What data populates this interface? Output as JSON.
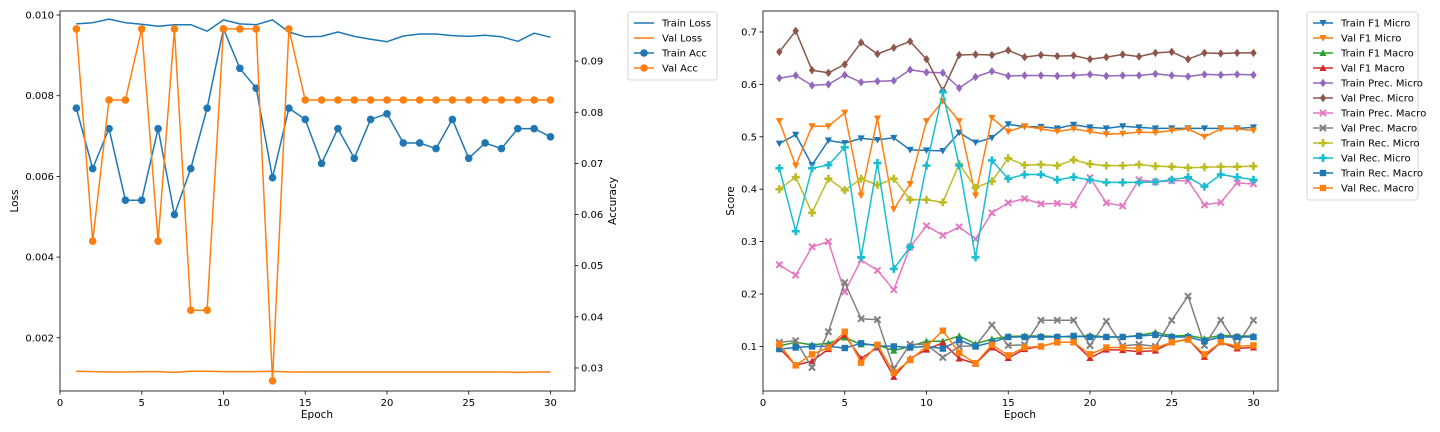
{
  "chart_data": [
    {
      "type": "line",
      "xlabel": "Epoch",
      "ylabel": "Loss",
      "y2label": "Accuracy",
      "x": [
        1,
        2,
        3,
        4,
        5,
        6,
        7,
        8,
        9,
        10,
        11,
        12,
        13,
        14,
        15,
        16,
        17,
        18,
        19,
        20,
        21,
        22,
        23,
        24,
        25,
        26,
        27,
        28,
        29,
        30
      ],
      "xlim": [
        0,
        31.5
      ],
      "xticks": [
        0,
        5,
        10,
        15,
        20,
        25,
        30
      ],
      "ylim": [
        0.00068,
        0.0101
      ],
      "yticks": [
        0.002,
        0.004,
        0.006,
        0.008,
        0.01
      ],
      "ytick_labels": [
        "0.002",
        "0.004",
        "0.006",
        "0.008",
        "0.010"
      ],
      "y2lim": [
        0.0255,
        0.0998
      ],
      "y2ticks": [
        0.03,
        0.04,
        0.05,
        0.06,
        0.07,
        0.08,
        0.09
      ],
      "y2tick_labels": [
        "0.03",
        "0.04",
        "0.05",
        "0.06",
        "0.07",
        "0.08",
        "0.09"
      ],
      "legend_position": "outside upper right",
      "series": [
        {
          "name": "Train Loss",
          "axis": "left",
          "color": "#1f77b4",
          "marker": "none",
          "values": [
            0.00978,
            0.00981,
            0.0099,
            0.00981,
            0.00977,
            0.00972,
            0.00976,
            0.00976,
            0.0096,
            0.00988,
            0.00978,
            0.00976,
            0.00988,
            0.00958,
            0.00946,
            0.00947,
            0.00958,
            0.00947,
            0.0094,
            0.00934,
            0.00948,
            0.00953,
            0.00953,
            0.00949,
            0.00947,
            0.0095,
            0.00946,
            0.00935,
            0.00955,
            0.00945
          ]
        },
        {
          "name": "Val Loss",
          "axis": "left",
          "color": "#ff7f0e",
          "marker": "none",
          "values": [
            0.00117,
            0.00116,
            0.00115,
            0.00115,
            0.00116,
            0.00116,
            0.00114,
            0.00117,
            0.00117,
            0.00116,
            0.00116,
            0.00116,
            0.00117,
            0.00115,
            0.00115,
            0.00115,
            0.00115,
            0.00115,
            0.00115,
            0.00115,
            0.00115,
            0.00115,
            0.00115,
            0.00115,
            0.00115,
            0.00115,
            0.00115,
            0.00114,
            0.00115,
            0.00115
          ]
        },
        {
          "name": "Train Acc",
          "axis": "right",
          "color": "#1f77b4",
          "marker": "circle",
          "values": [
            0.0808,
            0.069,
            0.0768,
            0.0628,
            0.0628,
            0.0768,
            0.06,
            0.069,
            0.0808,
            0.0963,
            0.0886,
            0.0847,
            0.0672,
            0.0808,
            0.0786,
            0.07,
            0.0768,
            0.071,
            0.0786,
            0.0797,
            0.074,
            0.074,
            0.0729,
            0.0786,
            0.071,
            0.074,
            0.0729,
            0.0768,
            0.0768,
            0.0752
          ]
        },
        {
          "name": "Val Acc",
          "axis": "right",
          "color": "#ff7f0e",
          "marker": "circle",
          "values": [
            0.0963,
            0.0548,
            0.0824,
            0.0824,
            0.0963,
            0.0548,
            0.0963,
            0.0413,
            0.0413,
            0.0963,
            0.0963,
            0.0963,
            0.0275,
            0.0963,
            0.0824,
            0.0824,
            0.0824,
            0.0824,
            0.0824,
            0.0824,
            0.0824,
            0.0824,
            0.0824,
            0.0824,
            0.0824,
            0.0824,
            0.0824,
            0.0824,
            0.0824,
            0.0824
          ]
        }
      ]
    },
    {
      "type": "line",
      "xlabel": "Epoch",
      "ylabel": "Score",
      "x": [
        1,
        2,
        3,
        4,
        5,
        6,
        7,
        8,
        9,
        10,
        11,
        12,
        13,
        14,
        15,
        16,
        17,
        18,
        19,
        20,
        21,
        22,
        23,
        24,
        25,
        26,
        27,
        28,
        29,
        30
      ],
      "xlim": [
        0,
        31.5
      ],
      "xticks": [
        0,
        5,
        10,
        15,
        20,
        25,
        30
      ],
      "ylim": [
        0.015,
        0.74
      ],
      "yticks": [
        0.1,
        0.2,
        0.3,
        0.4,
        0.5,
        0.6,
        0.7
      ],
      "ytick_labels": [
        "0.1",
        "0.2",
        "0.3",
        "0.4",
        "0.5",
        "0.6",
        "0.7"
      ],
      "legend_position": "outside upper right",
      "series": [
        {
          "name": "Train F1 Micro",
          "color": "#1f77b4",
          "marker": "tri_down",
          "values": [
            0.487,
            0.504,
            0.446,
            0.493,
            0.488,
            0.497,
            0.494,
            0.498,
            0.475,
            0.474,
            0.473,
            0.508,
            0.489,
            0.498,
            0.524,
            0.519,
            0.519,
            0.516,
            0.523,
            0.518,
            0.516,
            0.52,
            0.518,
            0.516,
            0.516,
            0.516,
            0.516,
            0.516,
            0.516,
            0.518
          ]
        },
        {
          "name": "Val F1 Micro",
          "color": "#ff7f0e",
          "marker": "tri_down",
          "values": [
            0.53,
            0.445,
            0.52,
            0.52,
            0.546,
            0.388,
            0.535,
            0.362,
            0.41,
            0.53,
            0.568,
            0.53,
            0.388,
            0.536,
            0.51,
            0.52,
            0.515,
            0.51,
            0.515,
            0.51,
            0.505,
            0.506,
            0.509,
            0.508,
            0.512,
            0.515,
            0.5,
            0.515,
            0.515,
            0.512
          ]
        },
        {
          "name": "Train F1 Macro",
          "color": "#2ca02c",
          "marker": "tri_up",
          "values": [
            0.101,
            0.108,
            0.103,
            0.106,
            0.117,
            0.104,
            0.103,
            0.092,
            0.1,
            0.11,
            0.11,
            0.12,
            0.105,
            0.114,
            0.119,
            0.12,
            0.12,
            0.119,
            0.118,
            0.121,
            0.118,
            0.118,
            0.121,
            0.127,
            0.12,
            0.121,
            0.115,
            0.121,
            0.12,
            0.12
          ]
        },
        {
          "name": "Val F1 Macro",
          "color": "#d62728",
          "marker": "tri_up",
          "values": [
            0.097,
            0.064,
            0.072,
            0.095,
            0.122,
            0.077,
            0.098,
            0.042,
            0.077,
            0.094,
            0.107,
            0.077,
            0.067,
            0.098,
            0.078,
            0.095,
            0.1,
            0.108,
            0.108,
            0.078,
            0.094,
            0.093,
            0.09,
            0.092,
            0.108,
            0.114,
            0.08,
            0.108,
            0.096,
            0.098
          ]
        },
        {
          "name": "Train Prec. Micro",
          "color": "#9467bd",
          "marker": "diamond",
          "values": [
            0.612,
            0.617,
            0.598,
            0.6,
            0.618,
            0.604,
            0.606,
            0.607,
            0.628,
            0.623,
            0.622,
            0.593,
            0.614,
            0.625,
            0.616,
            0.617,
            0.617,
            0.616,
            0.617,
            0.619,
            0.616,
            0.617,
            0.617,
            0.62,
            0.617,
            0.615,
            0.619,
            0.618,
            0.619,
            0.618
          ]
        },
        {
          "name": "Val Prec. Micro",
          "color": "#8c564b",
          "marker": "diamond",
          "values": [
            0.662,
            0.702,
            0.627,
            0.622,
            0.638,
            0.68,
            0.658,
            0.67,
            0.682,
            0.648,
            0.588,
            0.656,
            0.657,
            0.656,
            0.665,
            0.652,
            0.656,
            0.654,
            0.655,
            0.648,
            0.652,
            0.657,
            0.653,
            0.66,
            0.662,
            0.648,
            0.66,
            0.659,
            0.66,
            0.66
          ]
        },
        {
          "name": "Train Prec. Macro",
          "color": "#e377c2",
          "marker": "x",
          "values": [
            0.256,
            0.236,
            0.29,
            0.3,
            0.204,
            0.265,
            0.245,
            0.208,
            0.29,
            0.33,
            0.312,
            0.328,
            0.305,
            0.355,
            0.374,
            0.382,
            0.372,
            0.373,
            0.37,
            0.422,
            0.374,
            0.368,
            0.418,
            0.414,
            0.416,
            0.416,
            0.37,
            0.375,
            0.412,
            0.41
          ]
        },
        {
          "name": "Val Prec. Macro",
          "color": "#7f7f7f",
          "marker": "x",
          "values": [
            0.108,
            0.111,
            0.06,
            0.128,
            0.222,
            0.153,
            0.151,
            0.058,
            0.104,
            0.104,
            0.079,
            0.1,
            0.101,
            0.141,
            0.102,
            0.103,
            0.15,
            0.15,
            0.15,
            0.102,
            0.148,
            0.101,
            0.104,
            0.1,
            0.15,
            0.196,
            0.102,
            0.15,
            0.103,
            0.15
          ]
        },
        {
          "name": "Train Rec. Micro",
          "color": "#bcbd22",
          "marker": "plus",
          "values": [
            0.4,
            0.423,
            0.355,
            0.42,
            0.398,
            0.42,
            0.408,
            0.42,
            0.38,
            0.38,
            0.375,
            0.448,
            0.403,
            0.415,
            0.459,
            0.446,
            0.447,
            0.445,
            0.456,
            0.448,
            0.445,
            0.445,
            0.447,
            0.444,
            0.443,
            0.441,
            0.442,
            0.443,
            0.443,
            0.444
          ]
        },
        {
          "name": "Val Rec. Micro",
          "color": "#17becf",
          "marker": "plus",
          "values": [
            0.44,
            0.32,
            0.44,
            0.446,
            0.48,
            0.27,
            0.45,
            0.248,
            0.29,
            0.445,
            0.585,
            0.445,
            0.27,
            0.455,
            0.42,
            0.428,
            0.428,
            0.418,
            0.423,
            0.418,
            0.413,
            0.413,
            0.413,
            0.414,
            0.418,
            0.423,
            0.405,
            0.428,
            0.423,
            0.418
          ]
        },
        {
          "name": "Train Rec. Macro",
          "color": "#1f77b4",
          "marker": "square",
          "values": [
            0.095,
            0.098,
            0.1,
            0.1,
            0.097,
            0.106,
            0.101,
            0.1,
            0.098,
            0.1,
            0.096,
            0.112,
            0.1,
            0.108,
            0.118,
            0.118,
            0.118,
            0.118,
            0.12,
            0.118,
            0.118,
            0.118,
            0.12,
            0.122,
            0.118,
            0.118,
            0.11,
            0.118,
            0.118,
            0.118
          ]
        },
        {
          "name": "Val Rec. Macro",
          "color": "#ff7f0e",
          "marker": "square",
          "values": [
            0.104,
            0.064,
            0.085,
            0.098,
            0.128,
            0.069,
            0.103,
            0.05,
            0.074,
            0.1,
            0.13,
            0.088,
            0.068,
            0.103,
            0.083,
            0.098,
            0.1,
            0.108,
            0.108,
            0.085,
            0.098,
            0.098,
            0.096,
            0.097,
            0.108,
            0.113,
            0.085,
            0.108,
            0.1,
            0.102
          ]
        }
      ]
    }
  ]
}
